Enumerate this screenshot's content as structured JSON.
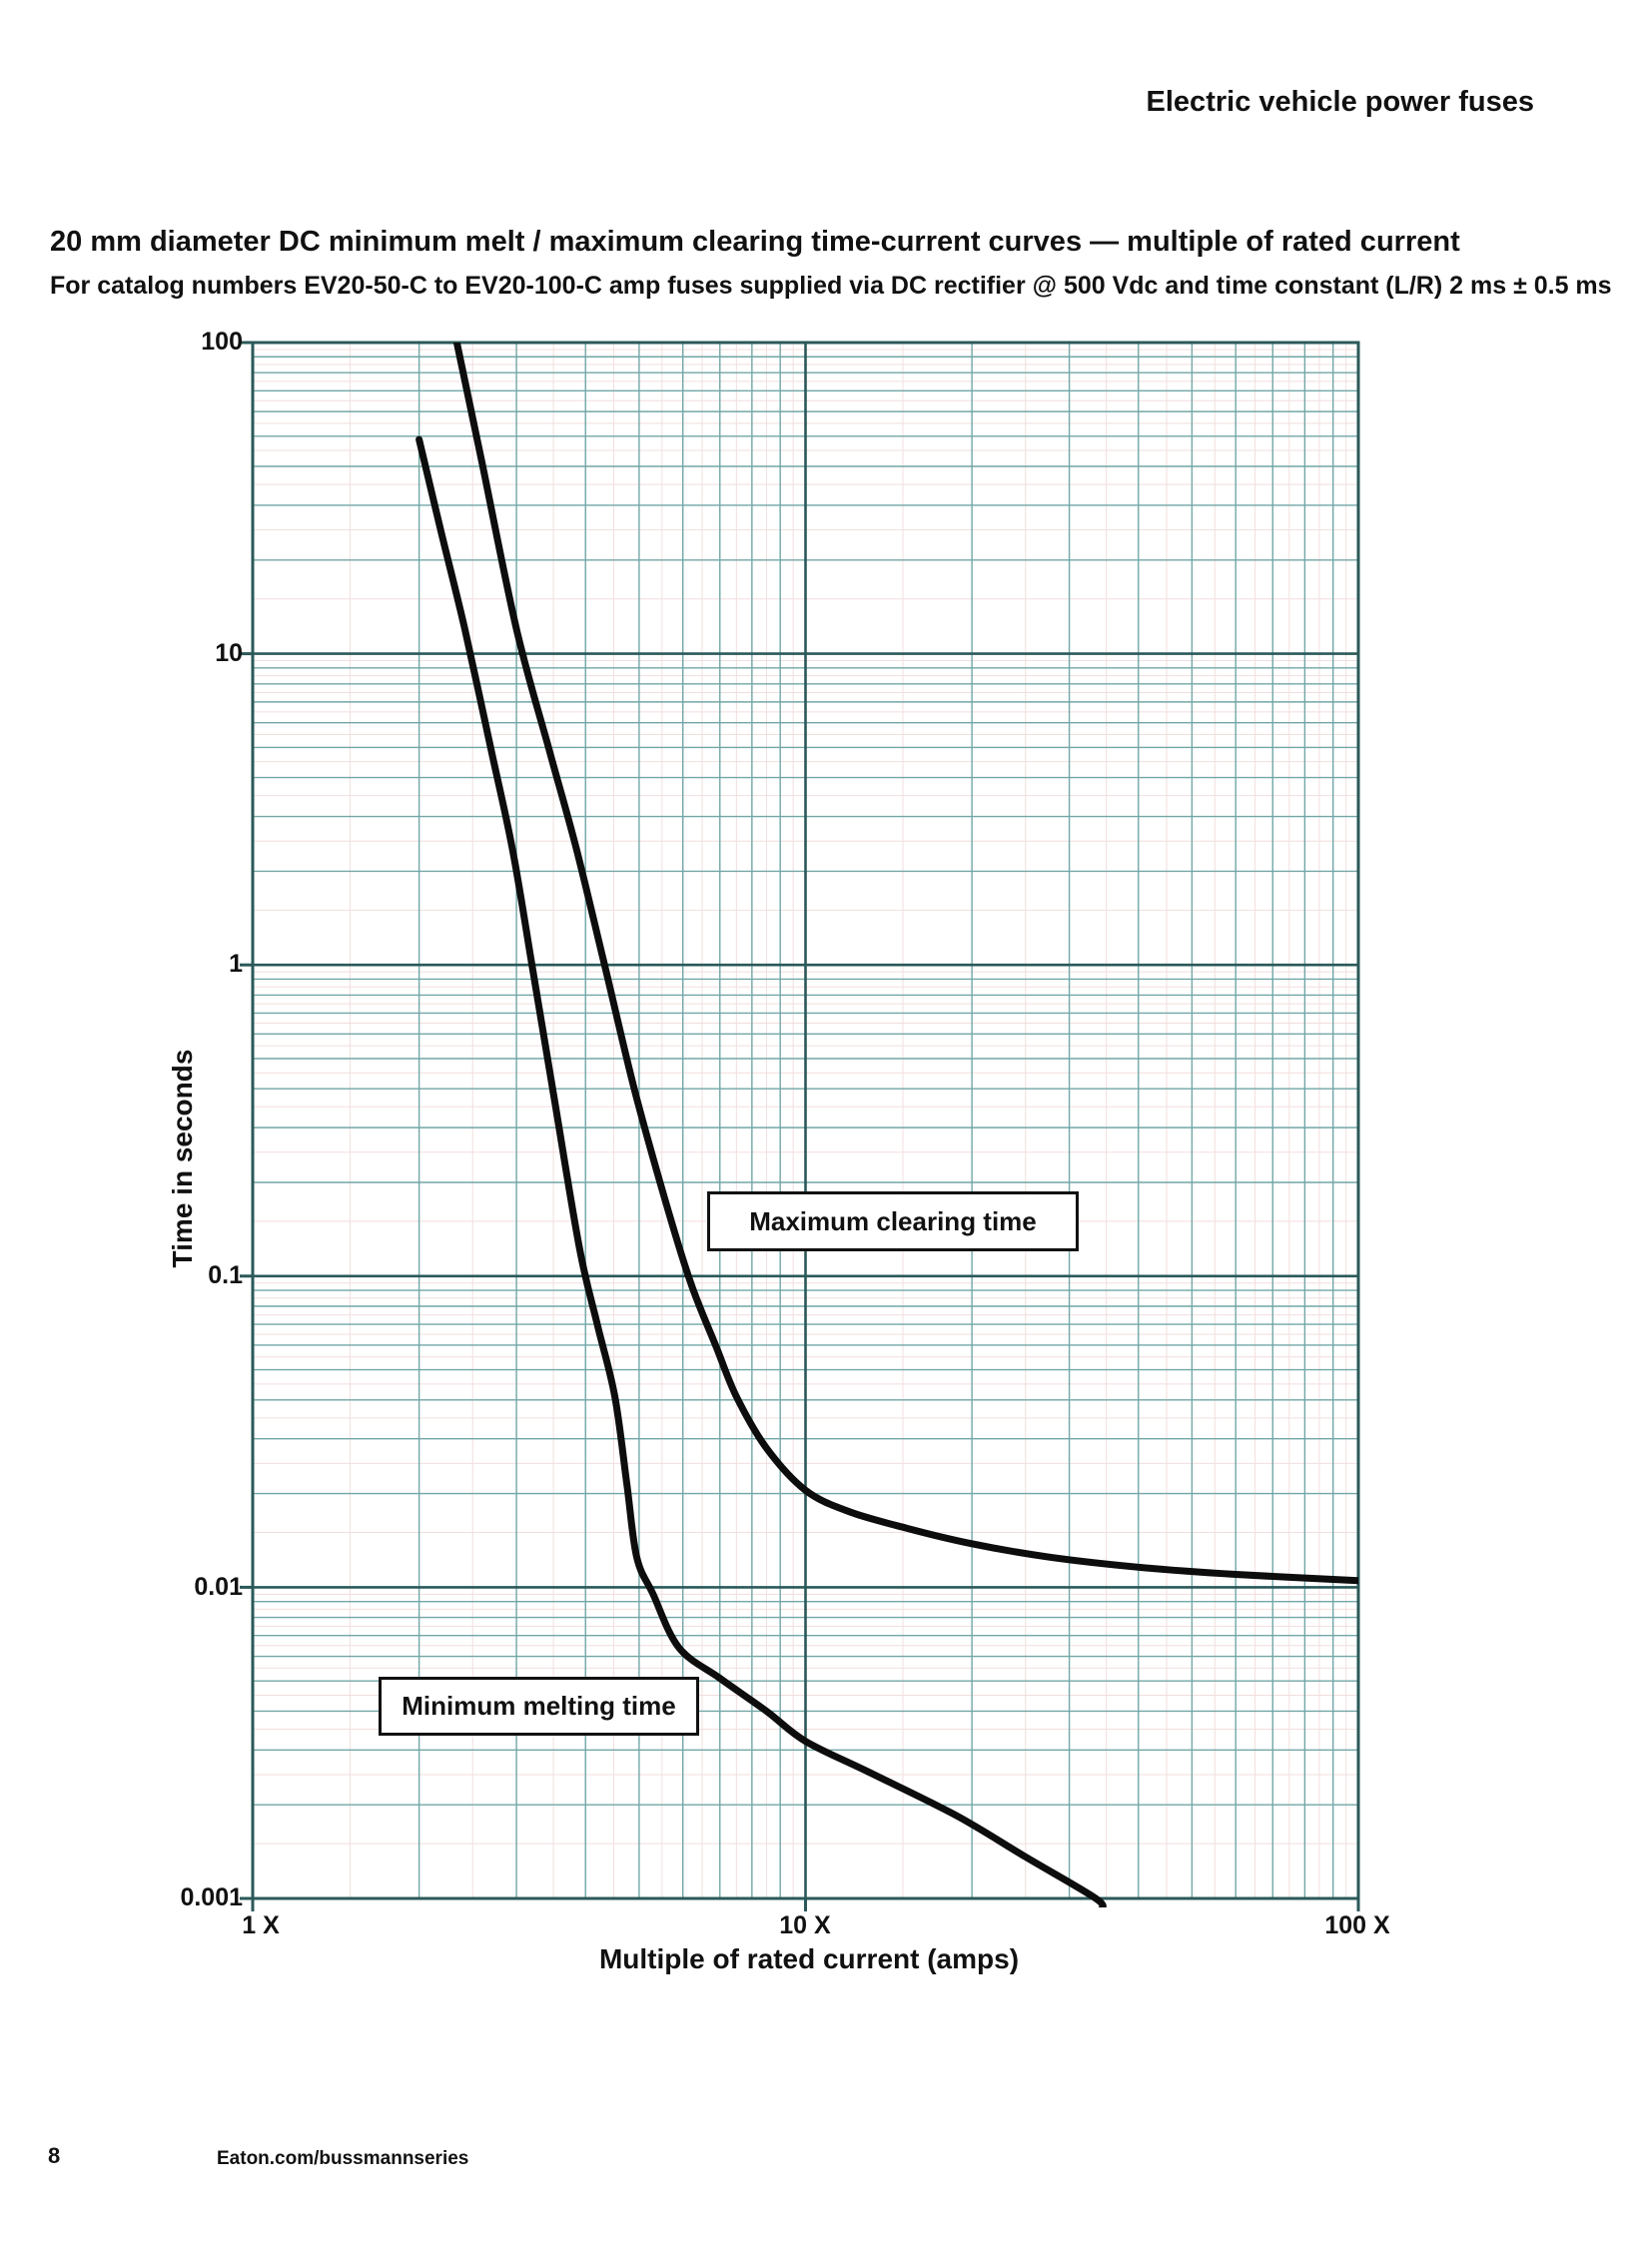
{
  "page": {
    "header": "Electric vehicle power fuses",
    "title": "20 mm diameter DC minimum melt / maximum clearing time-current curves — multiple of rated current",
    "subtitle": "For catalog numbers EV20-50-C to EV20-100-C amp fuses supplied via DC rectifier @ 500 Vdc and time constant (L/R) 2 ms ± 0.5 ms",
    "footer": {
      "page_number": "8",
      "website": "Eaton.com/bussmannseries"
    }
  },
  "chart_data": {
    "type": "line",
    "x_scale": "log",
    "y_scale": "log",
    "xlabel": "Multiple of rated current (amps)",
    "ylabel": "Time in seconds",
    "xlim": [
      1,
      100
    ],
    "ylim": [
      0.001,
      100
    ],
    "x_ticks": [
      {
        "value": 1,
        "label": "1 X"
      },
      {
        "value": 10,
        "label": "10 X"
      },
      {
        "value": 100,
        "label": "100 X"
      }
    ],
    "y_ticks": [
      {
        "value": 100,
        "label": "100"
      },
      {
        "value": 10,
        "label": "10"
      },
      {
        "value": 1,
        "label": "1"
      },
      {
        "value": 0.1,
        "label": "0.1"
      },
      {
        "value": 0.01,
        "label": "0.01"
      },
      {
        "value": 0.001,
        "label": "0.001"
      }
    ],
    "grid": {
      "on": true,
      "minor_color": "#72a6a6",
      "major_color": "#2b5858",
      "half_color": "#f3dede",
      "curve_color": "#0d0d0d"
    },
    "series": [
      {
        "name": "Maximum clearing time",
        "points": [
          [
            2.34,
            100
          ],
          [
            2.6,
            41
          ],
          [
            3.0,
            12
          ],
          [
            3.45,
            4.8
          ],
          [
            3.85,
            2.36
          ],
          [
            4.33,
            1.0
          ],
          [
            4.9,
            0.4
          ],
          [
            5.56,
            0.178
          ],
          [
            6.2,
            0.095
          ],
          [
            6.9,
            0.059
          ],
          [
            7.5,
            0.041
          ],
          [
            8.5,
            0.028
          ],
          [
            10,
            0.0205
          ],
          [
            12,
            0.0175
          ],
          [
            15.2,
            0.0155
          ],
          [
            20,
            0.0138
          ],
          [
            27.6,
            0.0125
          ],
          [
            40,
            0.0116
          ],
          [
            60,
            0.011
          ],
          [
            100,
            0.0105
          ]
        ]
      },
      {
        "name": "Minimum melting time",
        "points": [
          [
            2.0,
            48.8
          ],
          [
            2.2,
            24
          ],
          [
            2.42,
            12
          ],
          [
            2.7,
            4.9
          ],
          [
            2.95,
            2.36
          ],
          [
            3.2,
            1.0
          ],
          [
            3.5,
            0.386
          ],
          [
            3.9,
            0.123
          ],
          [
            4.2,
            0.07
          ],
          [
            4.52,
            0.041
          ],
          [
            4.75,
            0.0216
          ],
          [
            4.95,
            0.0125
          ],
          [
            5.3,
            0.0095
          ],
          [
            5.9,
            0.0064
          ],
          [
            7.0,
            0.0051
          ],
          [
            8.5,
            0.004
          ],
          [
            10,
            0.0032
          ],
          [
            13,
            0.00255
          ],
          [
            18.7,
            0.00185
          ],
          [
            25,
            0.00136
          ],
          [
            33.5,
            0.001
          ],
          [
            34.3,
            0.00092
          ]
        ]
      }
    ],
    "annotations": [
      {
        "text": "Maximum clearing time"
      },
      {
        "text": "Minimum melting time"
      }
    ]
  }
}
